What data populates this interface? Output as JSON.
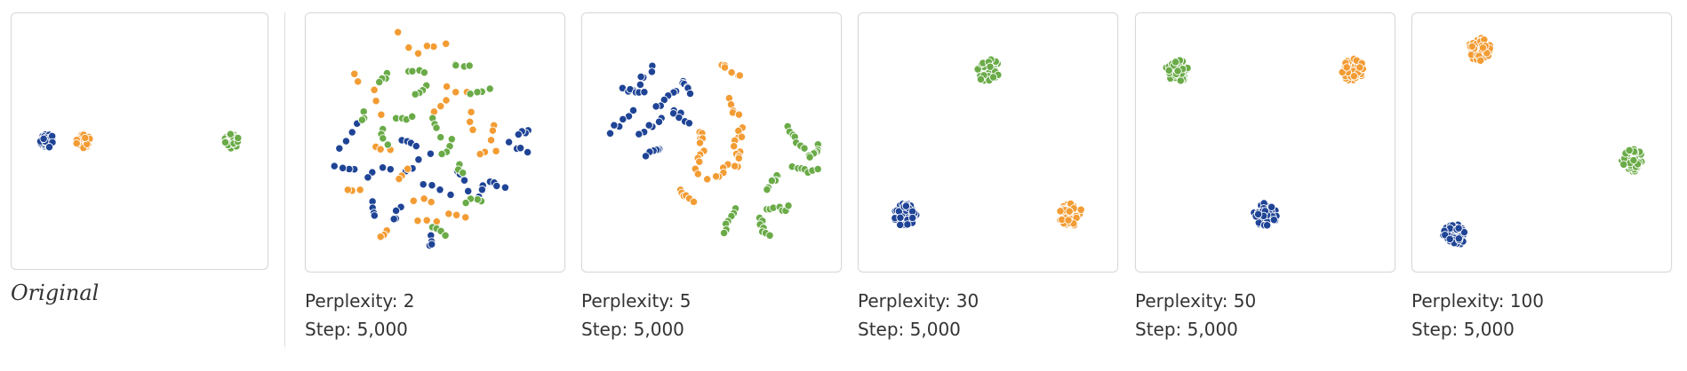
{
  "original": {
    "label": "Original"
  },
  "colors": {
    "blue": "#1f4496",
    "orange": "#f39c34",
    "green": "#6aab48",
    "dot_stroke": "#ffffff"
  },
  "panels": [
    {
      "perplexity": "Perplexity: 2",
      "step": "Step: 5,000"
    },
    {
      "perplexity": "Perplexity: 5",
      "step": "Step: 5,000"
    },
    {
      "perplexity": "Perplexity: 30",
      "step": "Step: 5,000"
    },
    {
      "perplexity": "Perplexity: 50",
      "step": "Step: 5,000"
    },
    {
      "perplexity": "Perplexity: 100",
      "step": "Step: 5,000"
    }
  ],
  "chart_data": [
    {
      "type": "scatter",
      "title": "Original",
      "axes": "hidden",
      "grid": false,
      "series": [
        {
          "color": "blue",
          "cluster_centers": [
            [
              0.14,
              0.5
            ]
          ],
          "point_count": 50
        },
        {
          "color": "orange",
          "cluster_centers": [
            [
              0.28,
              0.5
            ]
          ],
          "point_count": 50
        },
        {
          "color": "green",
          "cluster_centers": [
            [
              0.86,
              0.5
            ]
          ],
          "point_count": 50
        }
      ]
    },
    {
      "type": "scatter",
      "title": "Perplexity: 2",
      "subtitle": "Step: 5,000",
      "axes": "hidden",
      "grid": false,
      "series": [
        {
          "color": "blue",
          "layout": "many small fragments scattered across plot",
          "point_count": 50
        },
        {
          "color": "orange",
          "layout": "many small fragments scattered across plot",
          "point_count": 50
        },
        {
          "color": "green",
          "layout": "many small fragments scattered across plot",
          "point_count": 50
        }
      ]
    },
    {
      "type": "scatter",
      "title": "Perplexity: 5",
      "subtitle": "Step: 5,000",
      "axes": "hidden",
      "grid": false,
      "series": [
        {
          "color": "blue",
          "layout": "clumpy fragments, upper-left",
          "point_count": 50
        },
        {
          "color": "orange",
          "layout": "elongated fragments, center",
          "point_count": 50
        },
        {
          "color": "green",
          "layout": "elongated fragments, right",
          "point_count": 50
        }
      ]
    },
    {
      "type": "scatter",
      "title": "Perplexity: 30",
      "subtitle": "Step: 5,000",
      "axes": "hidden",
      "grid": false,
      "series": [
        {
          "color": "blue",
          "cluster_centers": [
            [
              0.18,
              0.78
            ]
          ],
          "point_count": 50
        },
        {
          "color": "orange",
          "cluster_centers": [
            [
              0.82,
              0.78
            ]
          ],
          "point_count": 50
        },
        {
          "color": "green",
          "cluster_centers": [
            [
              0.5,
              0.22
            ]
          ],
          "point_count": 50
        }
      ]
    },
    {
      "type": "scatter",
      "title": "Perplexity: 50",
      "subtitle": "Step: 5,000",
      "axes": "hidden",
      "grid": false,
      "series": [
        {
          "color": "blue",
          "cluster_centers": [
            [
              0.5,
              0.78
            ]
          ],
          "point_count": 50
        },
        {
          "color": "orange",
          "cluster_centers": [
            [
              0.84,
              0.22
            ]
          ],
          "point_count": 50
        },
        {
          "color": "green",
          "cluster_centers": [
            [
              0.16,
              0.22
            ]
          ],
          "point_count": 50
        }
      ]
    },
    {
      "type": "scatter",
      "title": "Perplexity: 100",
      "subtitle": "Step: 5,000",
      "axes": "hidden",
      "grid": false,
      "series": [
        {
          "color": "blue",
          "cluster_centers": [
            [
              0.16,
              0.86
            ]
          ],
          "point_count": 50
        },
        {
          "color": "orange",
          "cluster_centers": [
            [
              0.26,
              0.14
            ]
          ],
          "point_count": 50
        },
        {
          "color": "green",
          "cluster_centers": [
            [
              0.85,
              0.57
            ]
          ],
          "point_count": 50
        }
      ]
    }
  ]
}
